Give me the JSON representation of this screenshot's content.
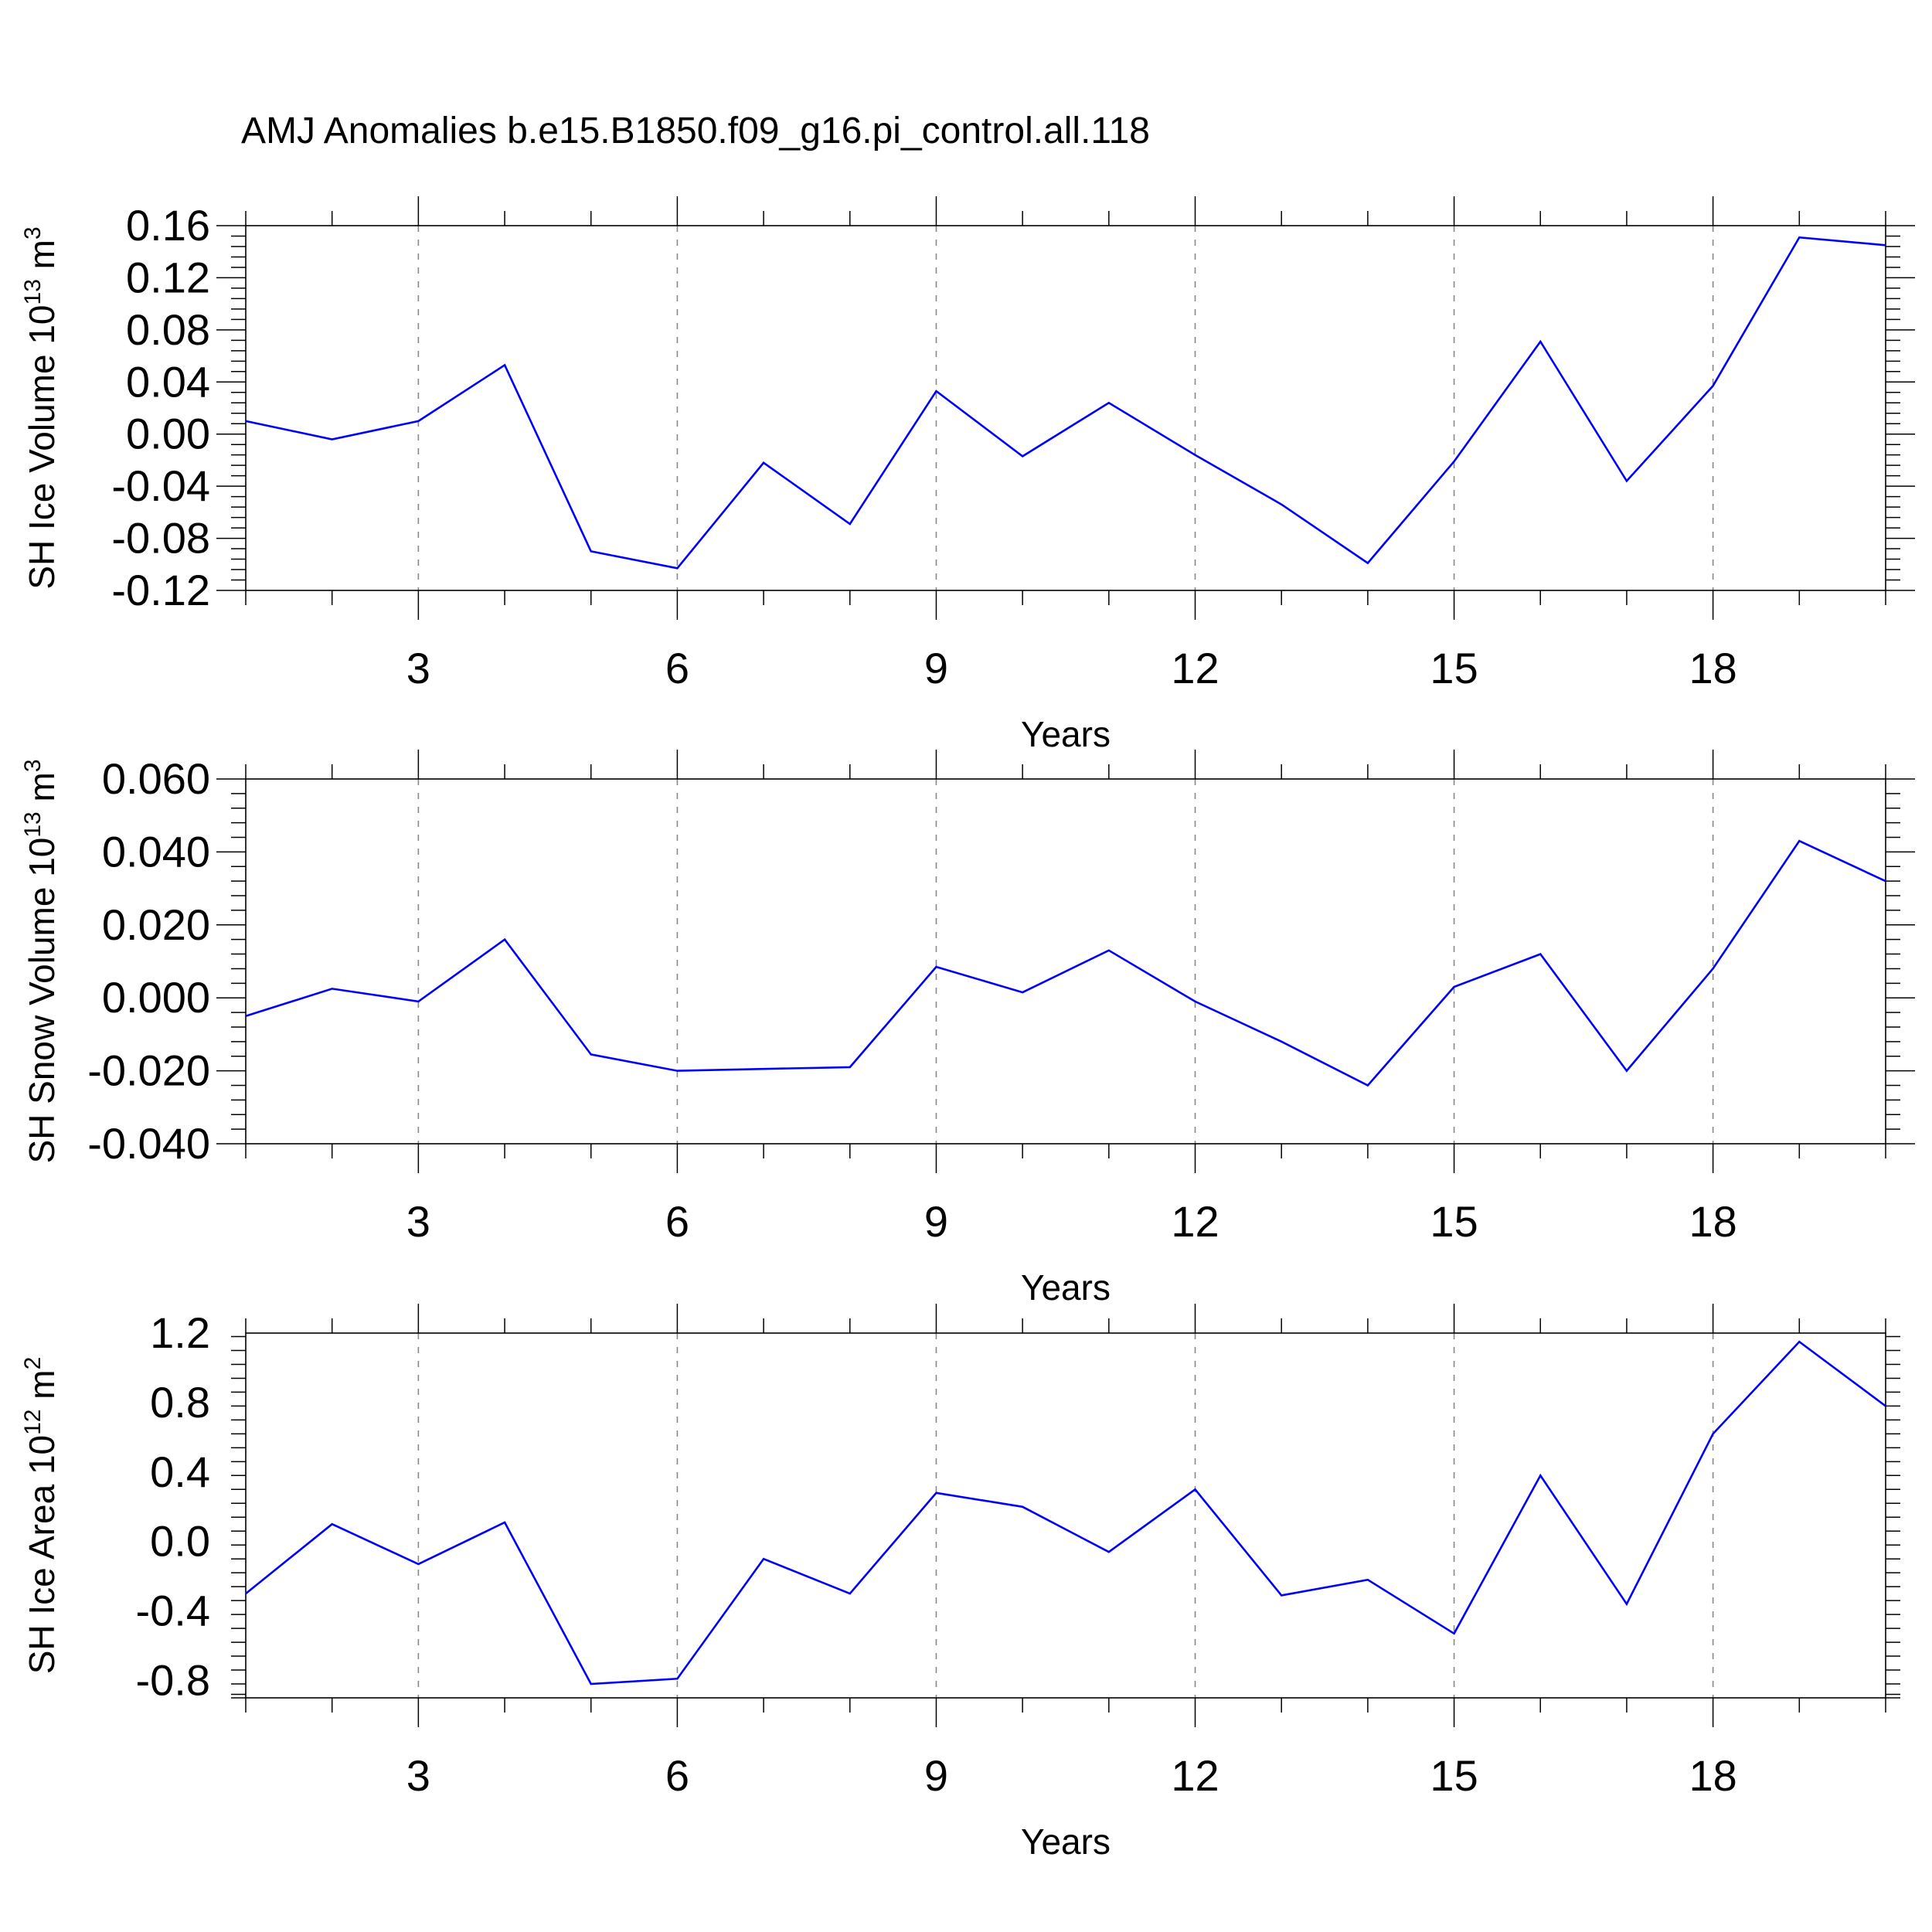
{
  "chart_data": {
    "title": "AMJ Anomalies b.e15.B1850.f09_g16.pi_control.all.118",
    "panels": [
      {
        "type": "line",
        "ylabel": {
          "text": "SH Ice Volume 10",
          "exp": "13",
          "unit": " m",
          "unit_exp": "3"
        },
        "xlabel": "Years",
        "xlim": [
          1,
          20
        ],
        "ylim": [
          -0.12,
          0.16
        ],
        "xticks": [
          3,
          6,
          9,
          12,
          15,
          18
        ],
        "xtick_labels": [
          "3",
          "6",
          "9",
          "12",
          "15",
          "18"
        ],
        "yticks": [
          -0.12,
          -0.08,
          -0.04,
          0.0,
          0.04,
          0.08,
          0.12,
          0.16
        ],
        "ytick_labels": [
          "-0.12",
          "-0.08",
          "-0.04",
          "0.00",
          "0.04",
          "0.08",
          "0.12",
          "0.16"
        ],
        "x": [
          1,
          2,
          3,
          4,
          5,
          6,
          7,
          8,
          9,
          10,
          11,
          12,
          13,
          14,
          15,
          16,
          17,
          18,
          19,
          20
        ],
        "values": [
          0.01,
          -0.004,
          0.01,
          0.053,
          -0.09,
          -0.103,
          -0.022,
          -0.069,
          0.033,
          -0.017,
          0.024,
          -0.016,
          -0.054,
          -0.099,
          -0.021,
          0.071,
          -0.036,
          0.037,
          0.151,
          0.145
        ],
        "grid": "x-dashed"
      },
      {
        "type": "line",
        "ylabel": {
          "text": "SH Snow Volume 10",
          "exp": "13",
          "unit": " m",
          "unit_exp": "3"
        },
        "xlabel": "Years",
        "xlim": [
          1,
          20
        ],
        "ylim": [
          -0.04,
          0.06
        ],
        "xticks": [
          3,
          6,
          9,
          12,
          15,
          18
        ],
        "xtick_labels": [
          "3",
          "6",
          "9",
          "12",
          "15",
          "18"
        ],
        "yticks": [
          -0.04,
          -0.02,
          0.0,
          0.02,
          0.04,
          0.06
        ],
        "ytick_labels": [
          "-0.040",
          "-0.020",
          "0.000",
          "0.020",
          "0.040",
          "0.060"
        ],
        "x": [
          1,
          2,
          3,
          4,
          5,
          6,
          7,
          8,
          9,
          10,
          11,
          12,
          13,
          14,
          15,
          16,
          17,
          18,
          19,
          20
        ],
        "values": [
          -0.005,
          0.0025,
          -0.001,
          0.016,
          -0.0155,
          -0.02,
          -0.0195,
          -0.019,
          0.0085,
          0.0015,
          0.013,
          -0.001,
          -0.012,
          -0.024,
          0.003,
          0.012,
          -0.02,
          0.008,
          0.043,
          0.032
        ],
        "grid": "x-dashed"
      },
      {
        "type": "line",
        "ylabel": {
          "text": "SH Ice Area 10",
          "exp": "12",
          "unit": " m",
          "unit_exp": "2"
        },
        "xlabel": "Years",
        "xlim": [
          1,
          20
        ],
        "ylim": [
          -0.9,
          1.2
        ],
        "xticks": [
          3,
          6,
          9,
          12,
          15,
          18
        ],
        "xtick_labels": [
          "3",
          "6",
          "9",
          "12",
          "15",
          "18"
        ],
        "yticks": [
          -0.8,
          -0.4,
          0.0,
          0.4,
          0.8,
          1.2
        ],
        "ytick_labels": [
          "-0.8",
          "-0.4",
          "0.0",
          "0.4",
          "0.8",
          "1.2"
        ],
        "x": [
          1,
          2,
          3,
          4,
          5,
          6,
          7,
          8,
          9,
          10,
          11,
          12,
          13,
          14,
          15,
          16,
          17,
          18,
          19,
          20
        ],
        "values": [
          -0.3,
          0.1,
          -0.13,
          0.11,
          -0.82,
          -0.79,
          -0.1,
          -0.3,
          0.28,
          0.2,
          -0.06,
          0.3,
          -0.31,
          -0.22,
          -0.53,
          0.38,
          -0.36,
          0.62,
          1.15,
          0.78
        ],
        "grid": "x-dashed"
      }
    ]
  },
  "colors": {
    "series": "#0000ff",
    "frame": "#000000",
    "grid": "#888888"
  }
}
